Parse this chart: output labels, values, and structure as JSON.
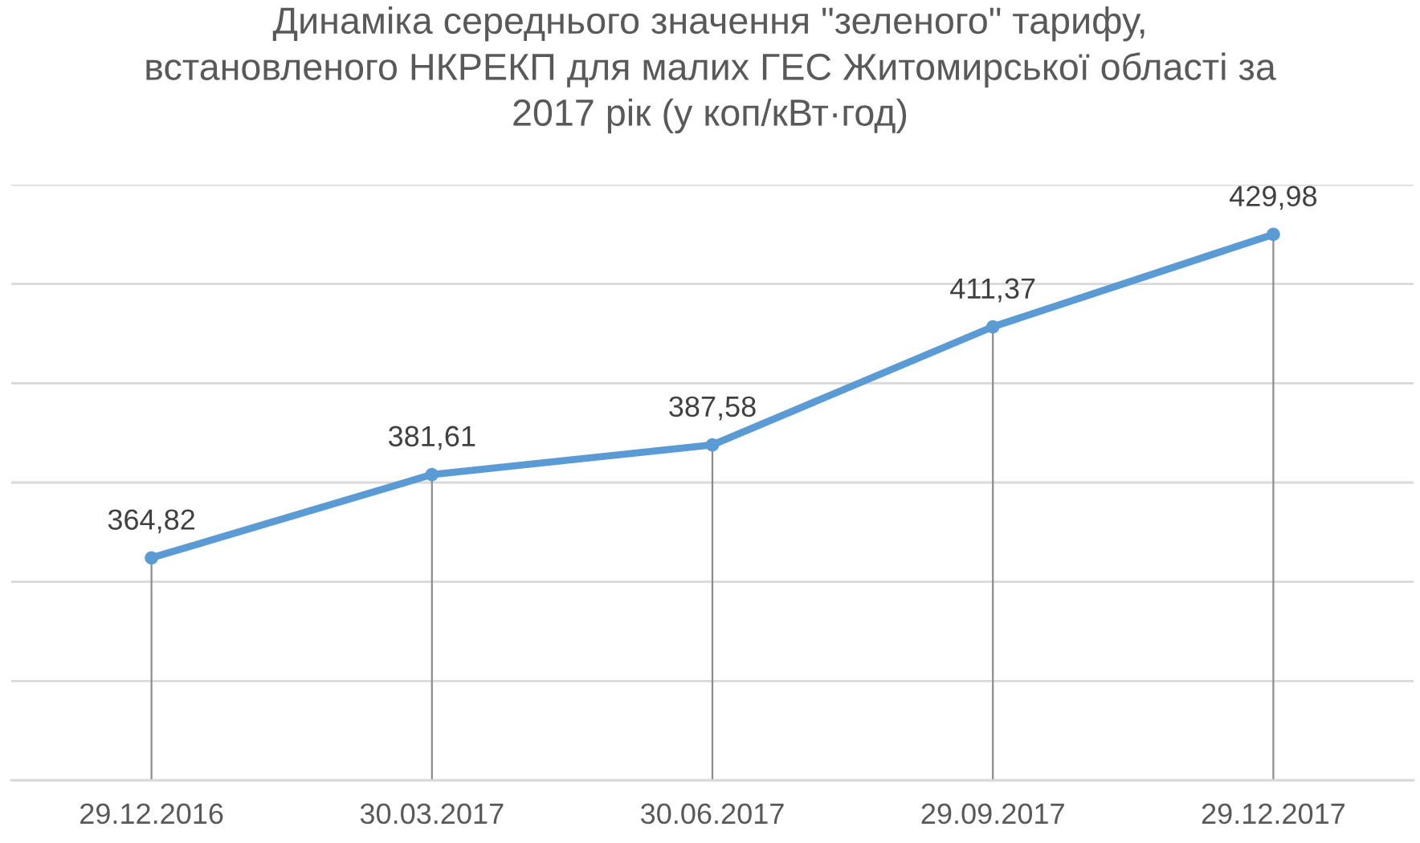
{
  "chart_data": {
    "type": "line",
    "title": "Динаміка середнього значення \"зеленого\" тарифу,\nвстановленого НКРЕКП для малих ГЕС Житомирської області за\n2017 рік (у коп/кВт·год)",
    "categories": [
      "29.12.2016",
      "30.03.2017",
      "30.06.2017",
      "29.09.2017",
      "29.12.2017"
    ],
    "series": [
      {
        "color": "#5b9bd5",
        "values": [
          364.82,
          381.61,
          387.58,
          411.37,
          429.98
        ],
        "value_labels": [
          "364,82",
          "381,61",
          "387,58",
          "411,37",
          "429,98"
        ]
      }
    ],
    "ylim": [
      320,
      440
    ],
    "yticks": [
      320,
      340,
      360,
      380,
      400,
      420,
      440
    ],
    "tick_labels": "x",
    "grid": true,
    "marker": "circle",
    "line_style": "solid",
    "legend": false
  }
}
